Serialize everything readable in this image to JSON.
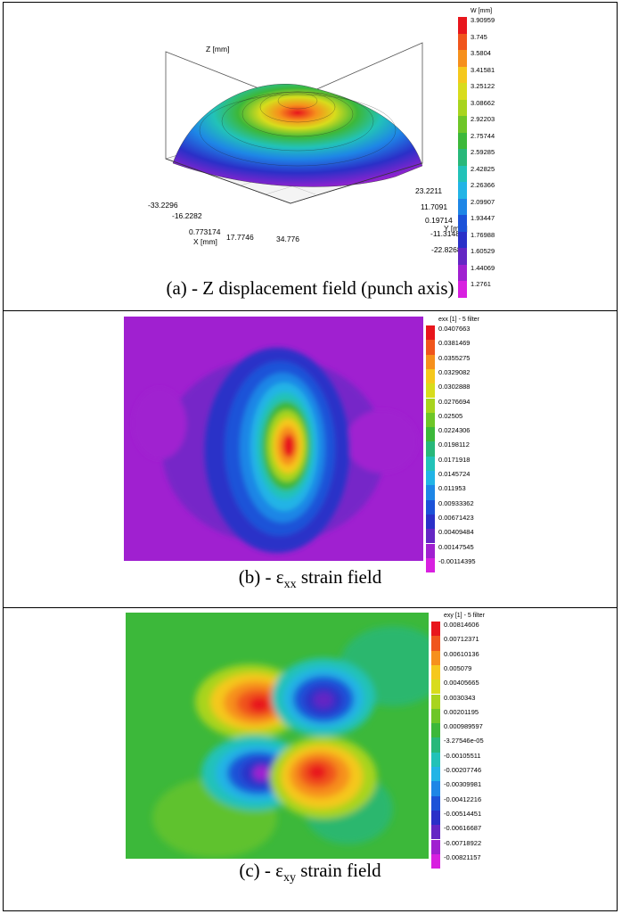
{
  "panels": [
    {
      "id": "a",
      "caption": "(a) - Z displacement field (punch axis)",
      "colorbar": {
        "title": "W [mm]",
        "labels": [
          "3.90959",
          "3.745",
          "3.5804",
          "3.41581",
          "3.25122",
          "3.08662",
          "2.92203",
          "2.75744",
          "2.59285",
          "2.42825",
          "2.26366",
          "2.09907",
          "1.93447",
          "1.76988",
          "1.60529",
          "1.44069",
          "1.2761"
        ]
      },
      "axes": {
        "z_label": "Z [mm]",
        "x_label": "X [mm]",
        "y_label": "Y [mm]",
        "x_ticks": [
          "-33.2296",
          "-16.2282",
          "0.773174",
          "17.7746",
          "34.776"
        ],
        "y_ticks": [
          "23.2211",
          "11.7091",
          "0.19714",
          "-11.3148",
          "-22.8268"
        ]
      }
    },
    {
      "id": "b",
      "caption_prefix": "(b) - ε",
      "caption_sub": "xx",
      "caption_suffix": " strain field",
      "colorbar": {
        "title": "exx [1] - 5 filter",
        "labels": [
          "0.0407663",
          "0.0381469",
          "0.0355275",
          "0.0329082",
          "0.0302888",
          "0.0276694",
          "0.02505",
          "0.0224306",
          "0.0198112",
          "0.0171918",
          "0.0145724",
          "0.011953",
          "0.00933362",
          "0.00671423",
          "0.00409484",
          "0.00147545",
          "-0.00114395"
        ]
      }
    },
    {
      "id": "c",
      "caption_prefix": "(c) - ε",
      "caption_sub": "xy",
      "caption_suffix": " strain field",
      "colorbar": {
        "title": "exy [1] - 5 filter",
        "labels": [
          "0.00814606",
          "0.00712371",
          "0.00610136",
          "0.005079",
          "0.00405665",
          "0.0030343",
          "0.00201195",
          "0.000989597",
          "-3.27546e-05",
          "-0.00105511",
          "-0.00207746",
          "-0.00309981",
          "-0.00412216",
          "-0.00514451",
          "-0.00616687",
          "-0.00718922",
          "-0.00821157"
        ]
      }
    }
  ],
  "palette": [
    "#e8161c",
    "#f0551c",
    "#f6901c",
    "#f5c81c",
    "#d8dc1c",
    "#a8d41e",
    "#6ec628",
    "#3cb83a",
    "#28b87a",
    "#22c2b8",
    "#22b4e6",
    "#1e86e6",
    "#1c52d8",
    "#2a30c8",
    "#6426c4",
    "#a020d0",
    "#d820e0"
  ]
}
